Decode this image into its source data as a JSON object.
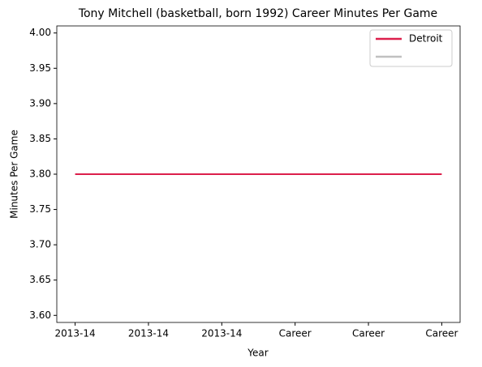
{
  "chart_data": {
    "type": "line",
    "title": "Tony Mitchell (basketball, born 1992) Career Minutes Per Game",
    "x_label": "Year",
    "y_label": "Minutes Per Game",
    "categories": [
      "2013-14",
      "2013-14",
      "2013-14",
      "Career",
      "Career",
      "Career"
    ],
    "series": [
      {
        "name": "Detroit",
        "color": "#dc1e4b",
        "values": [
          3.8,
          3.8,
          3.8,
          3.8,
          3.8,
          3.8
        ]
      },
      {
        "color": "#c0c0c0",
        "values": [
          null,
          null,
          null,
          null,
          null,
          null
        ]
      }
    ],
    "ylim": [
      3.59,
      4.01
    ],
    "yticks": [
      {
        "value": 3.6,
        "label": "3.60"
      },
      {
        "value": 3.65,
        "label": "3.65"
      },
      {
        "value": 3.7,
        "label": "3.70"
      },
      {
        "value": 3.75,
        "label": "3.75"
      },
      {
        "value": 3.8,
        "label": "3.80"
      },
      {
        "value": 3.85,
        "label": "3.85"
      },
      {
        "value": 3.9,
        "label": "3.90"
      },
      {
        "value": 3.95,
        "label": "3.95"
      },
      {
        "value": 4.0,
        "label": "4.00"
      }
    ],
    "legend": "upper right",
    "grid": false
  }
}
